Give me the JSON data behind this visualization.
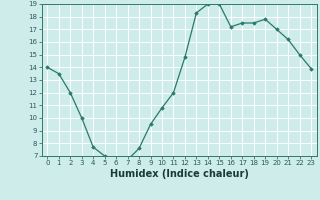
{
  "x": [
    0,
    1,
    2,
    3,
    4,
    5,
    6,
    7,
    8,
    9,
    10,
    11,
    12,
    13,
    14,
    15,
    16,
    17,
    18,
    19,
    20,
    21,
    22,
    23
  ],
  "y": [
    14.0,
    13.5,
    12.0,
    10.0,
    7.7,
    7.0,
    6.75,
    6.7,
    7.6,
    9.5,
    10.8,
    12.0,
    14.8,
    18.3,
    19.0,
    19.0,
    17.2,
    17.5,
    17.5,
    17.8,
    17.0,
    16.2,
    15.0,
    13.9
  ],
  "xlabel": "Humidex (Indice chaleur)",
  "ylim": [
    7,
    19
  ],
  "yticks": [
    7,
    8,
    9,
    10,
    11,
    12,
    13,
    14,
    15,
    16,
    17,
    18,
    19
  ],
  "xticks": [
    0,
    1,
    2,
    3,
    4,
    5,
    6,
    7,
    8,
    9,
    10,
    11,
    12,
    13,
    14,
    15,
    16,
    17,
    18,
    19,
    20,
    21,
    22,
    23
  ],
  "line_color": "#2a7a6a",
  "marker": "D",
  "marker_size": 1.8,
  "background_color": "#cdecea",
  "grid_color": "#ffffff",
  "tick_label_color": "#2a5a5a",
  "xlabel_color": "#1a3a3a",
  "xlabel_fontsize": 7,
  "tick_fontsize": 5,
  "linewidth": 0.9
}
